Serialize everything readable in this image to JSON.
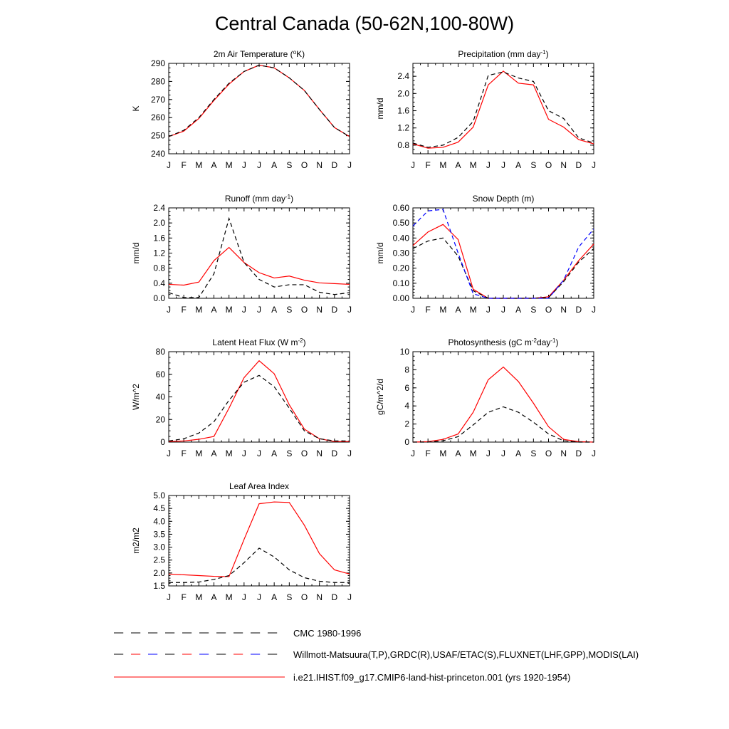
{
  "page": {
    "title": "Central Canada (50-62N,100-80W)"
  },
  "colors": {
    "model": "#ff0000",
    "cmc": "#000000",
    "obs": "#0000ff"
  },
  "legend": [
    {
      "label": "CMC 1980-1996",
      "style": "dash-black"
    },
    {
      "label": "Willmott-Matsuura(T,P),GRDC(R),USAF/ETAC(S),FLUXNET(LHF,GPP),MODIS(LAI)",
      "style": "dash-mixed"
    },
    {
      "label": "i.e21.IHIST.f09_g17.CMIP6-land-hist-princeton.001 (yrs 1920-1954)",
      "style": "solid-red"
    }
  ],
  "chart_data": [
    {
      "id": "temp",
      "type": "line",
      "title": "2m Air Temperature (",
      "title_sup": "o",
      "title_post": "K)",
      "ylabel": "K",
      "x": [
        "J",
        "F",
        "M",
        "A",
        "M",
        "J",
        "J",
        "A",
        "S",
        "O",
        "N",
        "D",
        "J"
      ],
      "ylim": [
        240,
        290
      ],
      "yticks": [
        240,
        250,
        260,
        270,
        280,
        290
      ],
      "series": [
        {
          "style": "solid-red",
          "values": [
            249.5,
            252.5,
            259.5,
            269.5,
            278.5,
            285.5,
            289.0,
            287.5,
            282.0,
            275.0,
            264.5,
            254.5,
            249.5
          ]
        },
        {
          "style": "dash-black",
          "values": [
            249.5,
            253.0,
            260.0,
            270.0,
            279.0,
            285.5,
            289.0,
            287.5,
            282.0,
            275.0,
            264.5,
            254.5,
            249.5
          ]
        }
      ]
    },
    {
      "id": "precip",
      "type": "line",
      "title": "Precipitation (mm day",
      "title_sup": "-1",
      "title_post": ")",
      "ylabel": "mm/d",
      "x": [
        "J",
        "F",
        "M",
        "A",
        "M",
        "J",
        "J",
        "A",
        "S",
        "O",
        "N",
        "D",
        "J"
      ],
      "ylim": [
        0.6,
        2.7
      ],
      "yticks": [
        0.8,
        1.2,
        1.6,
        2.0,
        2.4
      ],
      "series": [
        {
          "style": "solid-red",
          "values": [
            0.83,
            0.73,
            0.75,
            0.87,
            1.22,
            2.2,
            2.52,
            2.24,
            2.2,
            1.4,
            1.22,
            0.93,
            0.83
          ]
        },
        {
          "style": "dash-black",
          "values": [
            0.85,
            0.75,
            0.8,
            0.98,
            1.35,
            2.42,
            2.5,
            2.36,
            2.28,
            1.6,
            1.42,
            0.97,
            0.85
          ]
        }
      ]
    },
    {
      "id": "runoff",
      "type": "line",
      "title": "Runoff (mm day",
      "title_sup": "-1",
      "title_post": ")",
      "ylabel": "mm/d",
      "x": [
        "J",
        "F",
        "M",
        "A",
        "M",
        "J",
        "J",
        "A",
        "S",
        "O",
        "N",
        "D",
        "J"
      ],
      "ylim": [
        0,
        2.4
      ],
      "yticks": [
        0.0,
        0.4,
        0.8,
        1.2,
        1.6,
        2.0,
        2.4
      ],
      "series": [
        {
          "style": "solid-red",
          "values": [
            0.37,
            0.35,
            0.43,
            1.0,
            1.35,
            0.95,
            0.68,
            0.54,
            0.59,
            0.48,
            0.41,
            0.39,
            0.37
          ]
        },
        {
          "style": "dash-black",
          "values": [
            0.15,
            0.02,
            0.02,
            0.65,
            2.12,
            0.95,
            0.5,
            0.3,
            0.36,
            0.36,
            0.16,
            0.1,
            0.15
          ]
        }
      ]
    },
    {
      "id": "snow",
      "type": "line",
      "title": "Snow Depth (m)",
      "title_sup": "",
      "title_post": "",
      "ylabel": "mm/d",
      "x": [
        "J",
        "F",
        "M",
        "A",
        "M",
        "J",
        "J",
        "A",
        "S",
        "O",
        "N",
        "D",
        "J"
      ],
      "ylim": [
        0,
        0.6
      ],
      "yticks": [
        0.0,
        0.1,
        0.2,
        0.3,
        0.4,
        0.5,
        0.6
      ],
      "series": [
        {
          "style": "solid-red",
          "values": [
            0.35,
            0.44,
            0.49,
            0.39,
            0.06,
            0.0,
            0.0,
            0.0,
            0.0,
            0.01,
            0.12,
            0.25,
            0.36
          ]
        },
        {
          "style": "dash-black",
          "values": [
            0.33,
            0.38,
            0.4,
            0.28,
            0.05,
            0.0,
            0.0,
            0.0,
            0.0,
            0.005,
            0.11,
            0.24,
            0.33
          ]
        },
        {
          "style": "dash-blue",
          "values": [
            0.48,
            0.58,
            0.59,
            0.3,
            0.03,
            0.0,
            0.0,
            0.0,
            0.0,
            0.0,
            0.12,
            0.34,
            0.46
          ]
        }
      ]
    },
    {
      "id": "lhf",
      "type": "line",
      "title": "Latent Heat Flux (W m",
      "title_sup": "-2",
      "title_post": ")",
      "ylabel": "W/m^2",
      "x": [
        "J",
        "F",
        "M",
        "A",
        "M",
        "J",
        "J",
        "A",
        "S",
        "O",
        "N",
        "D",
        "J"
      ],
      "ylim": [
        0,
        80
      ],
      "yticks": [
        0,
        20,
        40,
        60,
        80
      ],
      "series": [
        {
          "style": "solid-red",
          "values": [
            0.5,
            1.0,
            2.5,
            5.0,
            30.0,
            57.0,
            72.0,
            60.5,
            33.0,
            11.5,
            3.0,
            0.5,
            0.5
          ]
        },
        {
          "style": "dash-black",
          "values": [
            1.0,
            3.0,
            8.0,
            18.0,
            37.0,
            53.0,
            59.0,
            49.0,
            30.0,
            10.0,
            3.0,
            1.0,
            1.0
          ]
        }
      ]
    },
    {
      "id": "gpp",
      "type": "line",
      "title": "Photosynthesis (gC m",
      "title_sup": "-2",
      "title_post": "day",
      "title_sup2": "-1",
      "title_post2": ")",
      "ylabel": "gC/m^2/d",
      "x": [
        "J",
        "F",
        "M",
        "A",
        "M",
        "J",
        "J",
        "A",
        "S",
        "O",
        "N",
        "D",
        "J"
      ],
      "ylim": [
        0,
        10
      ],
      "yticks": [
        0,
        2,
        4,
        6,
        8,
        10
      ],
      "series": [
        {
          "style": "solid-red",
          "values": [
            0.0,
            0.05,
            0.3,
            0.9,
            3.3,
            6.9,
            8.3,
            6.7,
            4.3,
            1.7,
            0.3,
            0.05,
            0.0
          ]
        },
        {
          "style": "dash-black",
          "values": [
            0.0,
            0.0,
            0.15,
            0.6,
            1.9,
            3.3,
            3.9,
            3.3,
            2.2,
            0.9,
            0.15,
            0.0,
            0.0
          ]
        }
      ]
    },
    {
      "id": "lai",
      "type": "line",
      "title": "Leaf Area Index",
      "title_sup": "",
      "title_post": "",
      "ylabel": "m2/m2",
      "x": [
        "J",
        "F",
        "M",
        "A",
        "M",
        "J",
        "J",
        "A",
        "S",
        "O",
        "N",
        "D",
        "J"
      ],
      "ylim": [
        1.5,
        5.0
      ],
      "yticks": [
        1.5,
        2.0,
        2.5,
        3.0,
        3.5,
        4.0,
        4.5,
        5.0
      ],
      "series": [
        {
          "style": "solid-red",
          "values": [
            1.96,
            1.93,
            1.9,
            1.87,
            1.86,
            3.3,
            4.68,
            4.75,
            4.73,
            3.85,
            2.75,
            2.12,
            1.96
          ]
        },
        {
          "style": "dash-black",
          "values": [
            1.63,
            1.63,
            1.65,
            1.75,
            1.9,
            2.4,
            2.96,
            2.62,
            2.12,
            1.82,
            1.68,
            1.63,
            1.63
          ]
        }
      ]
    }
  ]
}
